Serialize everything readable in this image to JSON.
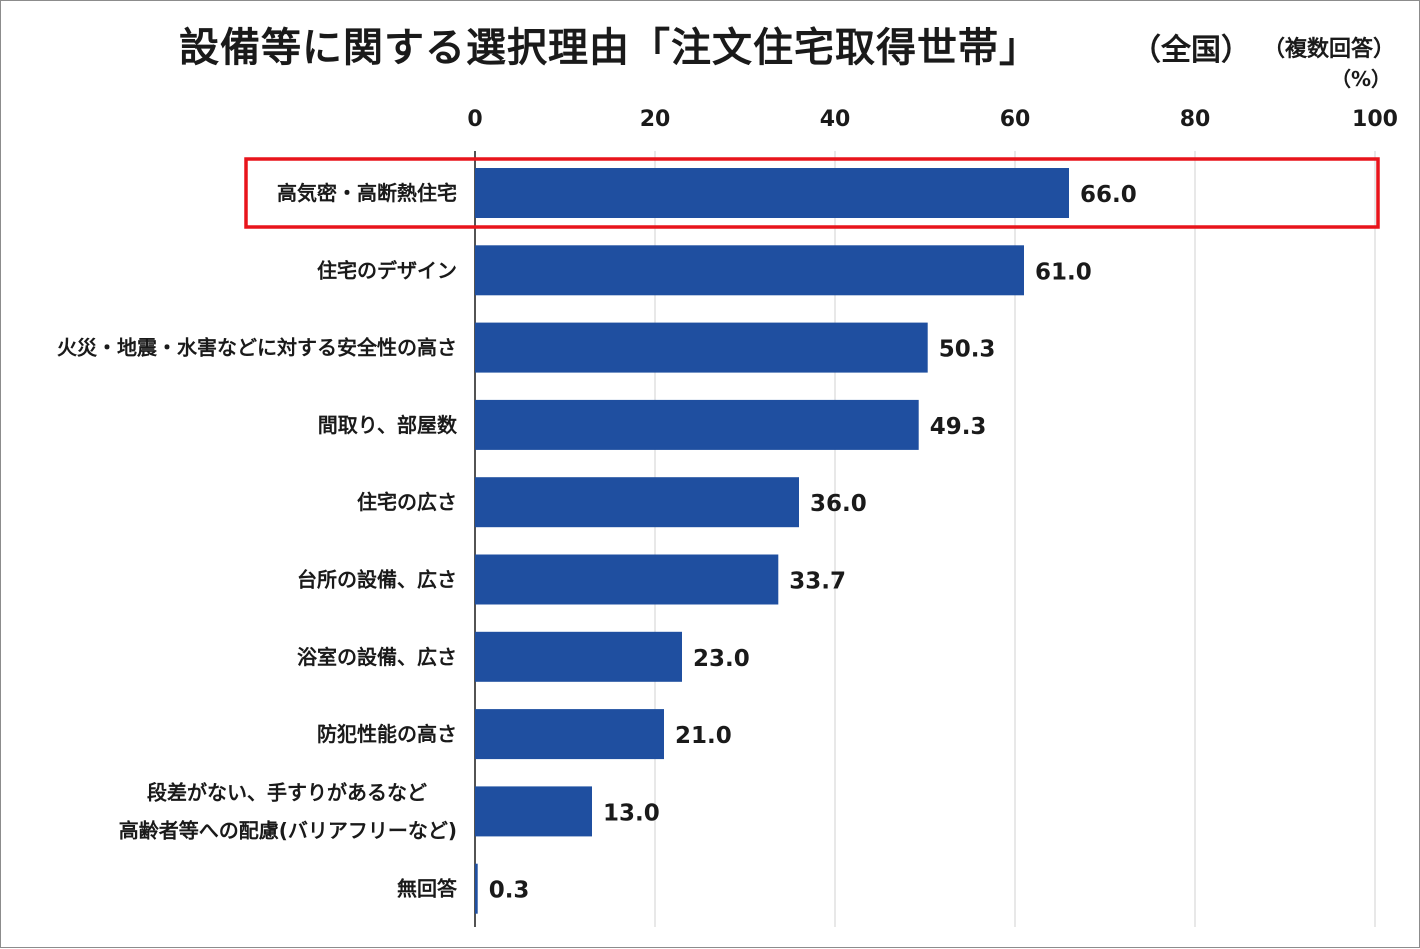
{
  "header": {
    "title": "設備等に関する選択理由「注文住宅取得世帯」",
    "title_suffix": "（全国）",
    "note": "（複数回答）",
    "unit": "（%）"
  },
  "chart_data": {
    "type": "bar",
    "orientation": "horizontal",
    "title": "設備等に関する選択理由「注文住宅取得世帯」（全国）",
    "unit": "%",
    "xlim": [
      0,
      100
    ],
    "x_ticks": [
      0,
      20,
      40,
      60,
      80,
      100
    ],
    "grid": true,
    "categories": [
      "高気密・高断熱住宅",
      "住宅のデザイン",
      "火災・地震・水害などに対する安全性の高さ",
      "間取り、部屋数",
      "住宅の広さ",
      "台所の設備、広さ",
      "浴室の設備、広さ",
      "防犯性能の高さ",
      "段差がない、手すりがあるなど\n高齢者等への配慮(バリアフリーなど)",
      "無回答"
    ],
    "values": [
      66.0,
      61.0,
      50.3,
      49.3,
      36.0,
      33.7,
      23.0,
      21.0,
      13.0,
      0.3
    ],
    "value_labels": [
      "66.0",
      "61.0",
      "50.3",
      "49.3",
      "36.0",
      "33.7",
      "23.0",
      "21.0",
      "13.0",
      "0.3"
    ],
    "highlighted_category": "高気密・高断熱住宅",
    "colors": {
      "bar": "#1f4fa0",
      "highlight_border": "#e8141b",
      "grid": "#d0d0d0",
      "axis": "#1a1a1a"
    }
  }
}
